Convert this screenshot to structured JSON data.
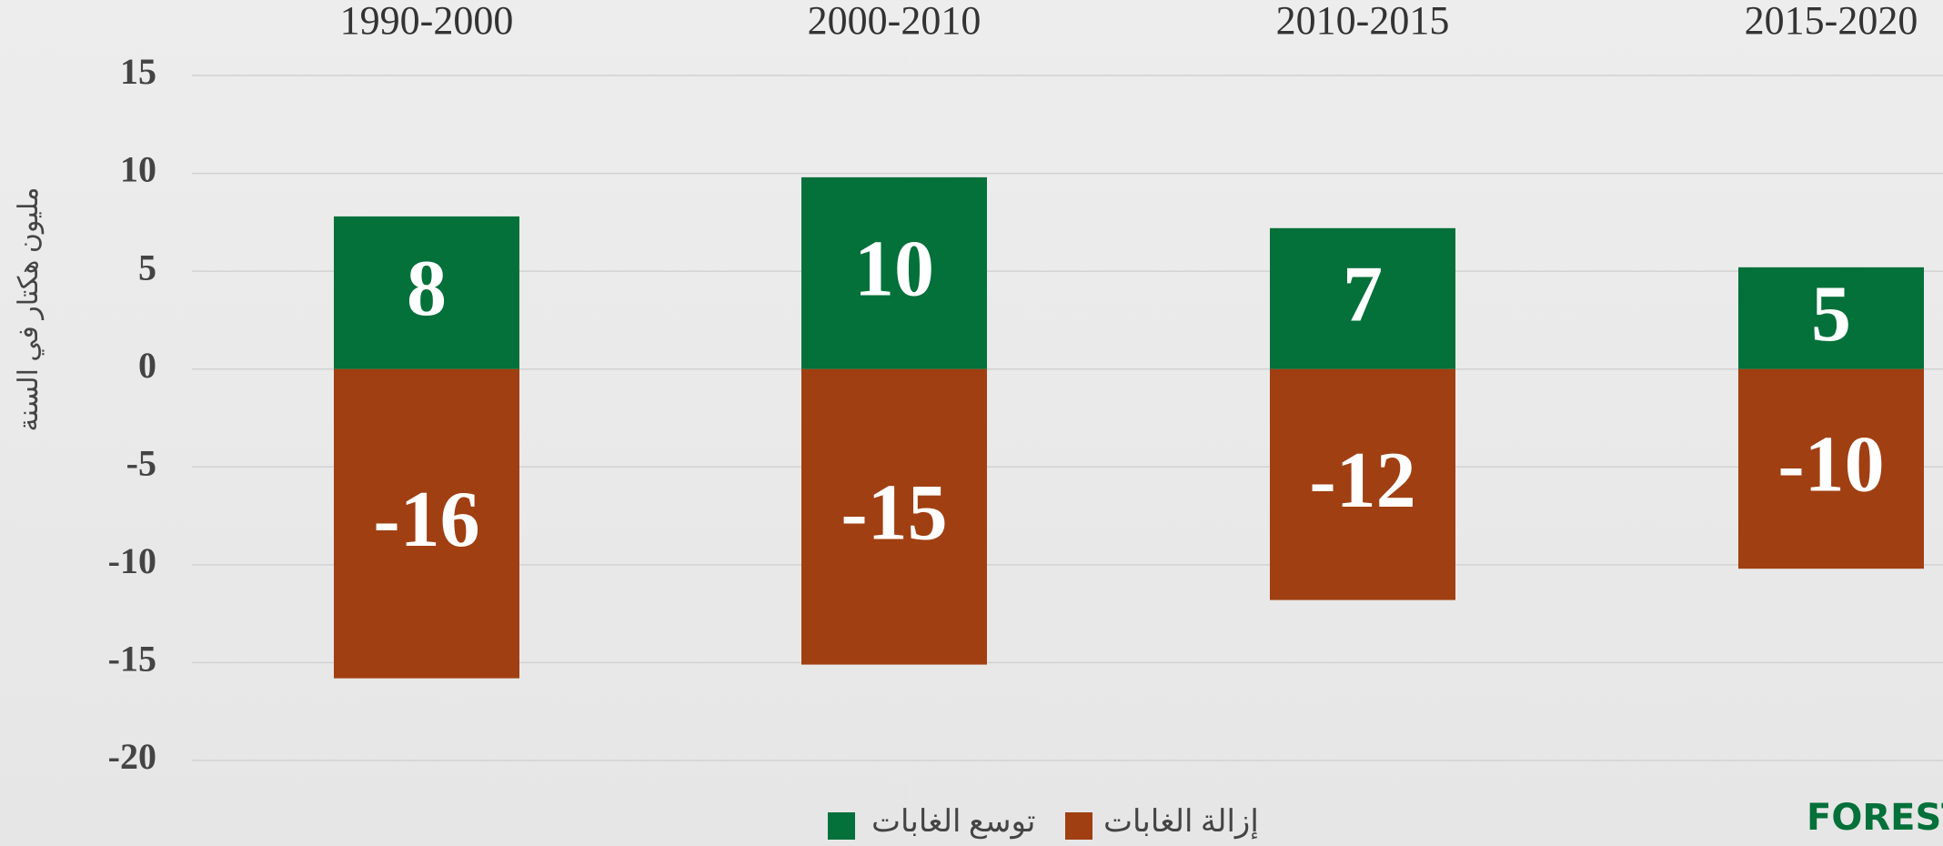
{
  "chart_data": {
    "type": "bar",
    "categories": [
      "1990-2000",
      "2000-2010",
      "2010-2015",
      "2015-2020"
    ],
    "y_label": "مليون هكتار في السنة",
    "series": [
      {
        "name": "توسع الغابات",
        "color": "#04703a",
        "values": [
          7.8,
          9.8,
          7.2,
          5.2
        ],
        "value_labels": [
          "8",
          "10",
          "7",
          "5"
        ]
      },
      {
        "name": "إزالة الغابات",
        "color": "#a03f12",
        "values": [
          -15.8,
          -15.1,
          -11.8,
          -10.2
        ],
        "value_labels": [
          "-16",
          "-15",
          "-12",
          "-10"
        ]
      }
    ],
    "ylim": [
      -20,
      15
    ],
    "yticks": [
      15,
      10,
      5,
      0,
      -5,
      -10,
      -15,
      -20
    ],
    "grid": true,
    "legend": "bottom",
    "logo": "FORESTS,"
  }
}
